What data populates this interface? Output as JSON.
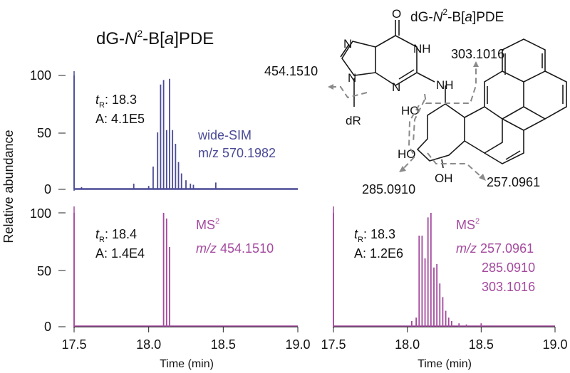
{
  "colors": {
    "wide_sim": "#4a4a96",
    "ms2": "#a44a9e",
    "axis": "#222222",
    "structure": "#1a1a1a",
    "fragment": "#8a8a8a"
  },
  "chart_data": [
    {
      "type": "line",
      "panel": "top",
      "title_prefix": "dG-",
      "title_italic": "N",
      "title_sup": "2",
      "title_mid": "-B[",
      "title_italic2": "a",
      "title_suffix": "]PDE",
      "ylabel": "Relative abundance",
      "xlim": [
        17.5,
        19.0
      ],
      "ylim": [
        0,
        100
      ],
      "yticks": [
        "0",
        "50",
        "100"
      ],
      "color": "wide_sim",
      "tr_label": "t",
      "tr_sub": "R",
      "tr_value": ": 18.3",
      "area_text": "A: 4.1E5",
      "scan_line1": "wide-SIM",
      "scan_line2": "m/z 570.1982",
      "series": [
        {
          "x": [
            17.5,
            17.55,
            17.9,
            18.0,
            18.03,
            18.06,
            18.08,
            18.1,
            18.12,
            18.14,
            18.16,
            18.18,
            18.2,
            18.22,
            18.25,
            18.28,
            18.3,
            18.45
          ],
          "y": [
            100,
            2,
            5,
            3,
            20,
            50,
            92,
            96,
            52,
            97,
            52,
            40,
            24,
            14,
            8,
            5,
            4,
            6
          ]
        }
      ]
    },
    {
      "type": "line",
      "panel": "bottom-left",
      "xlabel": "Time (min)",
      "xlim": [
        17.5,
        19.0
      ],
      "ylim": [
        0,
        100
      ],
      "xticks": [
        "17.5",
        "18.0",
        "18.5",
        "19.0"
      ],
      "yticks": [
        "0",
        "50",
        "100"
      ],
      "color": "ms2",
      "tr_label": "t",
      "tr_sub": "R",
      "tr_value": ": 18.4",
      "area_text": "A: 1.4E4",
      "scan_line1": "MS",
      "scan_sup": "2",
      "scan_mz_italic": "m/z",
      "scan_values": [
        "454.1510"
      ],
      "series": [
        {
          "x": [
            17.5,
            18.1,
            18.12,
            18.14
          ],
          "y": [
            100,
            100,
            95,
            70
          ]
        }
      ]
    },
    {
      "type": "line",
      "panel": "bottom-right",
      "xlabel": "Time (min)",
      "xlim": [
        17.5,
        19.0
      ],
      "ylim": [
        0,
        100
      ],
      "xticks": [
        "17.5",
        "18.0",
        "18.5",
        "19.0"
      ],
      "color": "ms2",
      "tr_label": "t",
      "tr_sub": "R",
      "tr_value": ": 18.3",
      "area_text": "A: 1.2E6",
      "scan_line1": "MS",
      "scan_sup": "2",
      "scan_mz_italic": "m/z",
      "scan_values": [
        "257.0961",
        "285.0910",
        "303.1016"
      ],
      "series": [
        {
          "x": [
            17.5,
            18.03,
            18.06,
            18.08,
            18.1,
            18.12,
            18.14,
            18.16,
            18.18,
            18.2,
            18.22,
            18.24,
            18.26,
            18.28,
            18.3,
            18.35,
            18.4,
            18.5
          ],
          "y": [
            100,
            5,
            8,
            80,
            80,
            60,
            96,
            100,
            52,
            55,
            38,
            26,
            14,
            8,
            5,
            3,
            2,
            3
          ]
        }
      ]
    }
  ],
  "structure": {
    "title_prefix": "dG-",
    "title_italic": "N",
    "title_sup": "2",
    "title_mid": "-B[",
    "title_italic2": "a",
    "title_suffix": "]PDE",
    "atoms": {
      "o": "O",
      "n7": "N",
      "nh1": "NH",
      "n3": "N",
      "n9": "N",
      "nh_link": "NH",
      "dr": "dR",
      "ho1": "HO",
      "ho2": "HO",
      "oh": "OH"
    },
    "fragments": [
      "454.1510",
      "303.1016",
      "285.0910",
      "257.0961"
    ]
  }
}
